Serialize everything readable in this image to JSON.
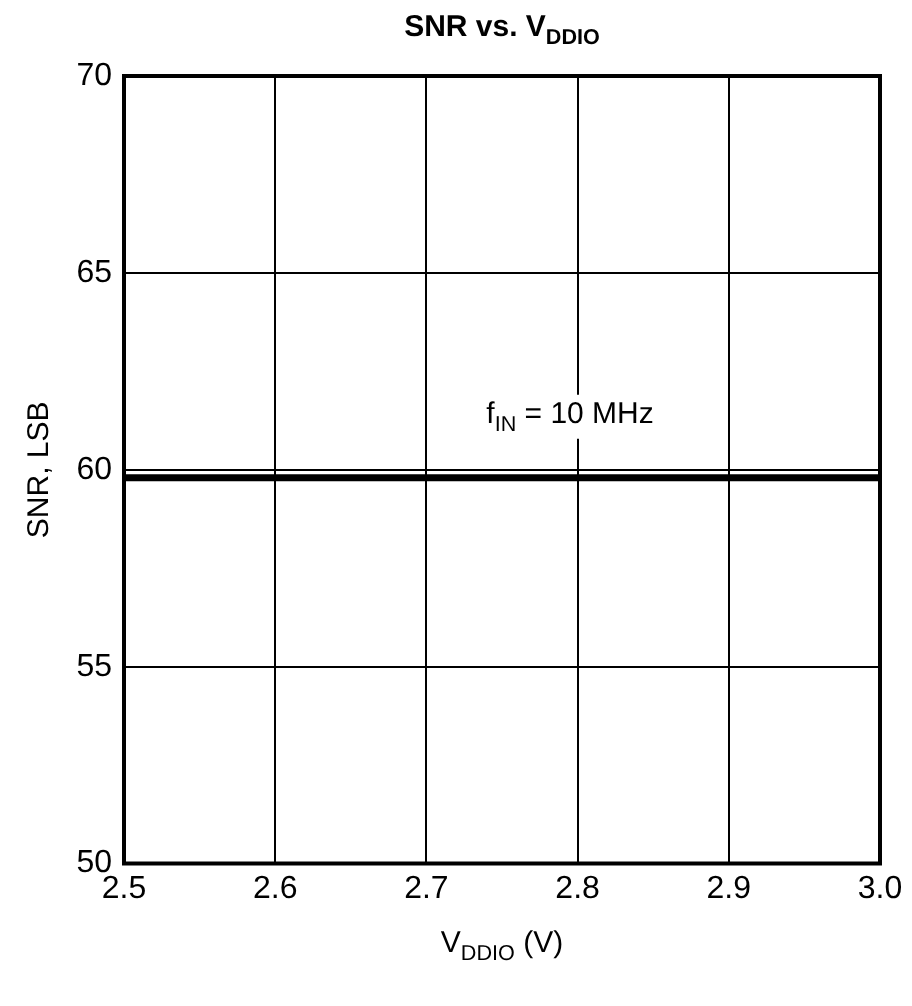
{
  "chart_data": {
    "type": "line",
    "title": "SNR vs. V$_{DDIO}$",
    "xlabel": "V$_{DDIO}$ (V)",
    "ylabel": "SNR, LSB",
    "x": [
      2.5,
      3.0
    ],
    "series": [
      {
        "color": "#000000",
        "values": [
          59.8,
          59.8
        ]
      }
    ],
    "xlim": [
      2.5,
      3.0
    ],
    "xticks": [
      {
        "value": 2.5,
        "label": "2.5"
      },
      {
        "value": 2.6,
        "label": "2.6"
      },
      {
        "value": 2.7,
        "label": "2.7"
      },
      {
        "value": 2.8,
        "label": "2.8"
      },
      {
        "value": 2.9,
        "label": "2.9"
      },
      {
        "value": 3.0,
        "label": "3.0"
      }
    ],
    "ylim": [
      50,
      70
    ],
    "yticks": [
      50,
      55,
      60,
      65,
      70
    ],
    "annotations": [
      "f$_{IN}$ = 10 MHz"
    ],
    "grid": true,
    "legend": false,
    "marker": "none",
    "line_style": "solid"
  }
}
